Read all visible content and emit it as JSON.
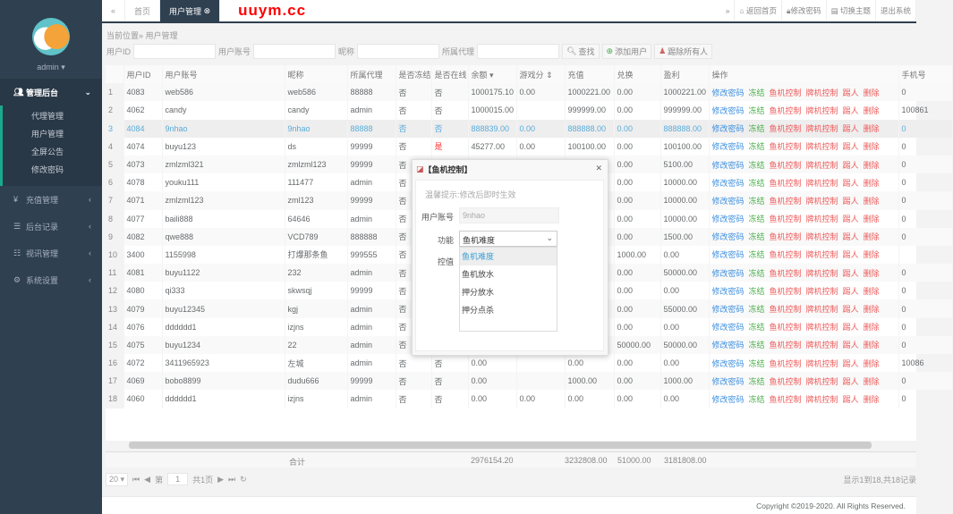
{
  "sidebar": {
    "user": "admin",
    "menu": [
      {
        "icon": "users-icon",
        "label": "管理后台",
        "expanded": true,
        "children": [
          "代理管理",
          "用户管理",
          "全屏公告",
          "修改密码"
        ]
      },
      {
        "icon": "yen-icon",
        "label": "充值管理"
      },
      {
        "icon": "list-icon",
        "label": "后台记录"
      },
      {
        "icon": "news-icon",
        "label": "视讯管理"
      },
      {
        "icon": "gears-icon",
        "label": "系统设置"
      }
    ]
  },
  "topbar": {
    "back": "«",
    "tabs": [
      "首页",
      "用户管理"
    ],
    "forward": "»",
    "links": [
      "返回首页",
      "修改密码",
      "切换主题",
      "退出系统"
    ],
    "watermark": "uuym.cc"
  },
  "breadcrumb": "当前位置» 用户管理",
  "search": {
    "fields": [
      "用户ID",
      "用户账号",
      "昵称",
      "所属代理"
    ],
    "buttons": [
      "查找",
      "添加用户",
      "踢除所有人"
    ]
  },
  "table": {
    "columns": [
      "",
      "用户ID",
      "用户账号",
      "昵称",
      "所属代理",
      "是否冻结",
      "是否在线",
      "余额 ▾",
      "游戏分 ⇕",
      "充值",
      "兑换",
      "盈利",
      "操作",
      "手机号"
    ],
    "actions": [
      "修改密码",
      "冻结",
      "鱼机控制",
      "牌机控制",
      "踢人",
      "删除"
    ],
    "rows": [
      [
        "1",
        "4083",
        "web586",
        "web586",
        "88888",
        "否",
        "否",
        "1000175.10",
        "0.00",
        "1000221.00",
        "0.00",
        "1000221.00",
        "0"
      ],
      [
        "2",
        "4062",
        "candy",
        "candy",
        "admin",
        "否",
        "否",
        "1000015.00",
        "",
        "999999.00",
        "0.00",
        "999999.00",
        "100861"
      ],
      [
        "3",
        "4084",
        "9nhao",
        "9nhao",
        "88888",
        "否",
        "否",
        "888839.00",
        "0.00",
        "888888.00",
        "0.00",
        "888888.00",
        "0"
      ],
      [
        "4",
        "4074",
        "buyu123",
        "ds",
        "99999",
        "否",
        "是",
        "45277.00",
        "0.00",
        "100100.00",
        "0.00",
        "100100.00",
        "0"
      ],
      [
        "5",
        "4073",
        "zmlzml321",
        "zmlzml123",
        "99999",
        "否",
        "",
        "",
        "",
        "",
        "0.00",
        "5100.00",
        "0"
      ],
      [
        "6",
        "4078",
        "youku111",
        "111477",
        "admin",
        "否",
        "",
        "",
        "",
        "",
        "0.00",
        "10000.00",
        "0"
      ],
      [
        "7",
        "4071",
        "zmlzml123",
        "zml123",
        "99999",
        "否",
        "",
        "",
        "",
        "",
        "0.00",
        "10000.00",
        "0"
      ],
      [
        "8",
        "4077",
        "baili888",
        "64646",
        "admin",
        "否",
        "",
        "",
        "",
        "",
        "0.00",
        "10000.00",
        "0"
      ],
      [
        "9",
        "4082",
        "qwe888",
        "VCD789",
        "888888",
        "否",
        "",
        "",
        "",
        "",
        "0.00",
        "1500.00",
        "0"
      ],
      [
        "10",
        "3400",
        "1155998",
        "打爆那条鱼",
        "999555",
        "否",
        "",
        "",
        "",
        "",
        "1000.00",
        "0.00",
        ""
      ],
      [
        "11",
        "4081",
        "buyu1122",
        "232",
        "admin",
        "否",
        "",
        "",
        "",
        "",
        "0.00",
        "50000.00",
        "0"
      ],
      [
        "12",
        "4080",
        "qi333",
        "skwsqj",
        "99999",
        "否",
        "",
        "",
        "",
        "",
        "0.00",
        "0.00",
        "0"
      ],
      [
        "13",
        "4079",
        "buyu12345",
        "kgj",
        "admin",
        "否",
        "",
        "",
        "",
        "",
        "0.00",
        "55000.00",
        "0"
      ],
      [
        "14",
        "4076",
        "dddddd1",
        "izjns",
        "admin",
        "否",
        "",
        "",
        "",
        "",
        "0.00",
        "0.00",
        "0"
      ],
      [
        "15",
        "4075",
        "buyu1234",
        "22",
        "admin",
        "否",
        "",
        "",
        "",
        "",
        "50000.00",
        "50000.00",
        "0"
      ],
      [
        "16",
        "4072",
        "3411965923",
        "左城",
        "admin",
        "否",
        "否",
        "0.00",
        "",
        "0.00",
        "0.00",
        "0.00",
        "10086"
      ],
      [
        "17",
        "4069",
        "bobo8899",
        "dudu666",
        "99999",
        "否",
        "否",
        "0.00",
        "",
        "1000.00",
        "0.00",
        "1000.00",
        "0"
      ],
      [
        "18",
        "4060",
        "dddddd1",
        "izjns",
        "admin",
        "否",
        "否",
        "0.00",
        "0.00",
        "0.00",
        "0.00",
        "0.00",
        "0"
      ]
    ],
    "selected_row": 3,
    "total": {
      "label": "合计",
      "balance": "2976154.20",
      "recharge": "3232808.00",
      "exchange": "51000.00",
      "profit": "3181808.00"
    }
  },
  "pager": {
    "page_size": "20",
    "page_prefix": "第",
    "page": "1",
    "page_suffix": "共1页",
    "info": "显示1到18,共18记录"
  },
  "footer": "Copyright ©2019-2020. All Rights Reserved.",
  "modal": {
    "title": "【鱼机控制】",
    "tip": "温馨提示:修改后即时生效",
    "account_label": "用户账号",
    "account_value": "9nhao",
    "func_label": "功能",
    "func_value": "鱼机难度",
    "ctrl_label": "控值",
    "options": [
      "鱼机难度",
      "鱼机放水",
      "押分放水",
      "押分点杀"
    ]
  }
}
